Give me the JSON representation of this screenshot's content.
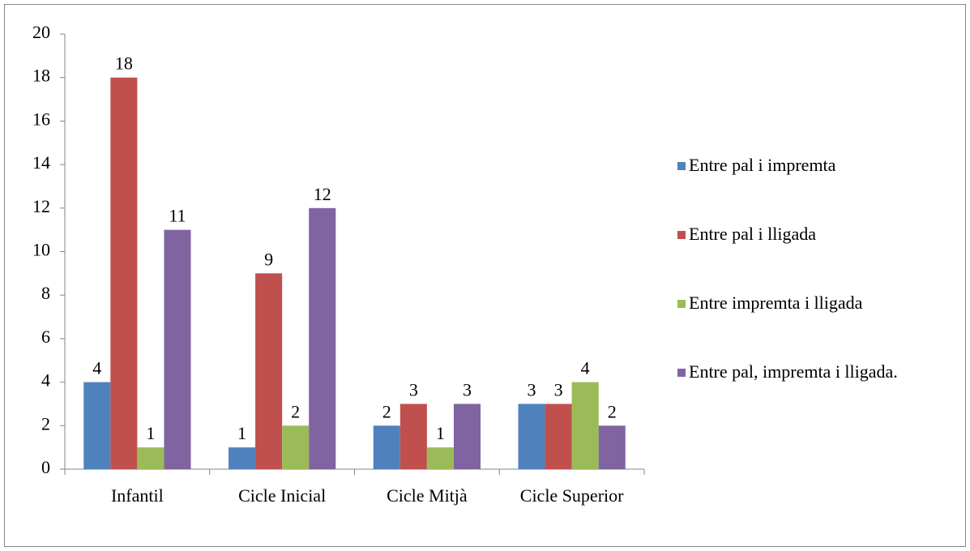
{
  "chart_data": {
    "type": "bar",
    "categories": [
      "Infantil",
      "Cicle Inicial",
      "Cicle Mitjà",
      "Cicle Superior"
    ],
    "series": [
      {
        "name": "Entre pal i impremta",
        "color": "#4f81bd",
        "values": [
          4,
          1,
          2,
          3
        ]
      },
      {
        "name": "Entre pal i lligada",
        "color": "#c0504d",
        "values": [
          18,
          9,
          3,
          3
        ]
      },
      {
        "name": "Entre impremta i lligada",
        "color": "#9bbb59",
        "values": [
          1,
          2,
          1,
          4
        ]
      },
      {
        "name": "Entre pal, impremta i lligada.",
        "color": "#8064a2",
        "values": [
          11,
          12,
          3,
          2
        ]
      }
    ],
    "ylim": [
      0,
      20
    ],
    "yticks": [
      0,
      2,
      4,
      6,
      8,
      10,
      12,
      14,
      16,
      18,
      20
    ],
    "grid": false,
    "legend": "right"
  }
}
